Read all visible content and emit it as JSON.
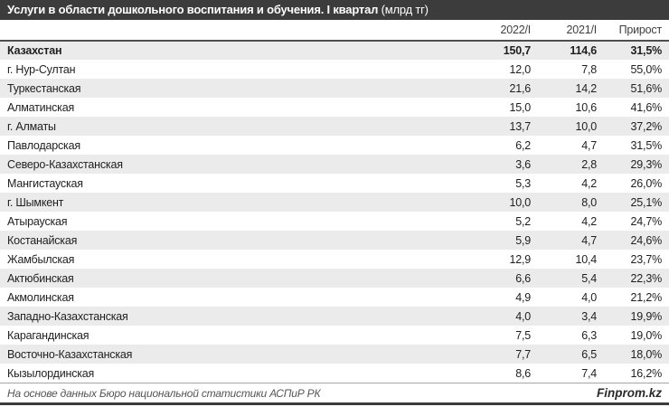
{
  "colors": {
    "titlebar_bg": "#3c3c3c",
    "alt_row_bg": "#ebebeb",
    "rule_dark": "#4d4d4d",
    "footer_rule": "#a6a6a6",
    "text": "#1f1f1f"
  },
  "header": {
    "title": "Услуги в области дошкольного воспитания и обучения. I квартал",
    "unit": "(млрд тг)"
  },
  "chart_data": {
    "type": "table",
    "title": "Услуги в области дошкольного воспитания и обучения. I квартал (млрд тг)",
    "columns": [
      "",
      "2022/I",
      "2021/I",
      "Прирост"
    ],
    "rows": [
      [
        "Казахстан",
        "150,7",
        "114,6",
        "31,5%"
      ],
      [
        "г. Нур-Султан",
        "12,0",
        "7,8",
        "55,0%"
      ],
      [
        "Туркестанская",
        "21,6",
        "14,2",
        "51,6%"
      ],
      [
        "Алматинская",
        "15,0",
        "10,6",
        "41,6%"
      ],
      [
        "г. Алматы",
        "13,7",
        "10,0",
        "37,2%"
      ],
      [
        "Павлодарская",
        "6,2",
        "4,7",
        "31,5%"
      ],
      [
        "Северо-Казахстанская",
        "3,6",
        "2,8",
        "29,3%"
      ],
      [
        "Мангистауская",
        "5,3",
        "4,2",
        "26,0%"
      ],
      [
        "г. Шымкент",
        "10,0",
        "8,0",
        "25,1%"
      ],
      [
        "Атырауская",
        "5,2",
        "4,2",
        "24,7%"
      ],
      [
        "Костанайская",
        "5,9",
        "4,7",
        "24,6%"
      ],
      [
        "Жамбылская",
        "12,9",
        "10,4",
        "23,7%"
      ],
      [
        "Актюбинская",
        "6,6",
        "5,4",
        "22,3%"
      ],
      [
        "Акмолинская",
        "4,9",
        "4,0",
        "21,2%"
      ],
      [
        "Западно-Казахстанская",
        "4,0",
        "3,4",
        "19,9%"
      ],
      [
        "Карагандинская",
        "7,5",
        "6,3",
        "19,0%"
      ],
      [
        "Восточно-Казахстанская",
        "7,7",
        "6,5",
        "18,0%"
      ],
      [
        "Кызылординская",
        "8,6",
        "7,4",
        "16,2%"
      ]
    ]
  },
  "footer": {
    "source": "На основе данных Бюро национальной статистики АСПиР РК",
    "brand": "Finprom.kz"
  }
}
